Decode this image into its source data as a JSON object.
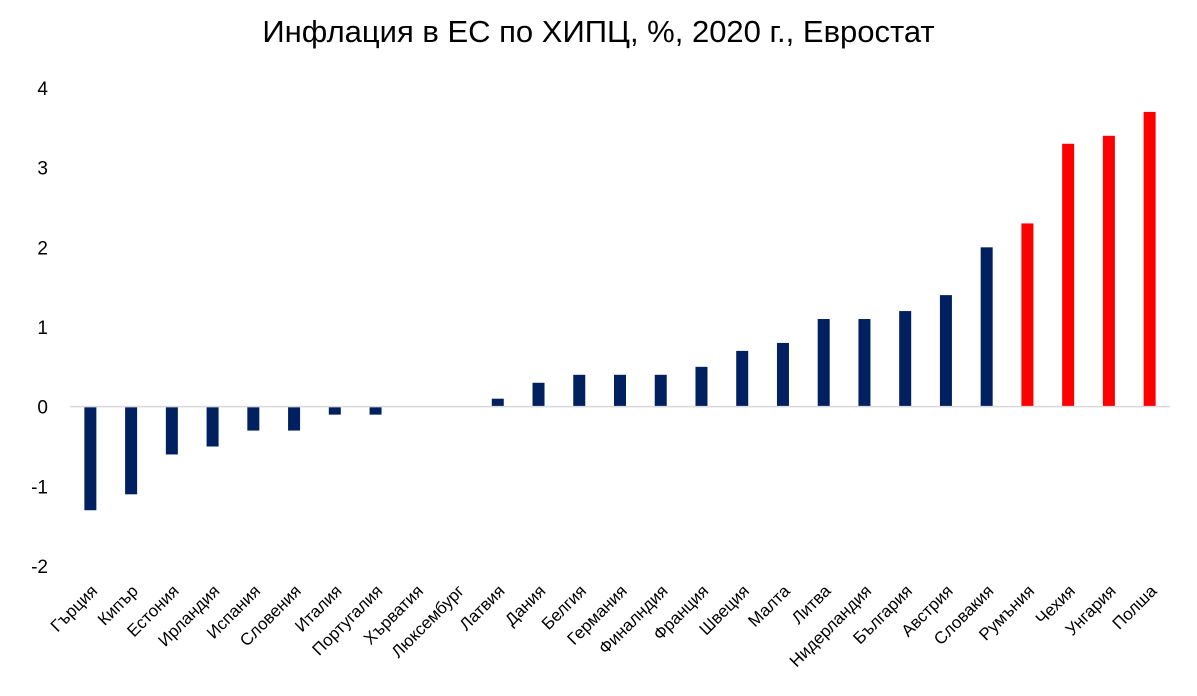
{
  "chart_data": {
    "type": "bar",
    "title": "Инфлация в ЕС по ХИПЦ, %, 2020 г., Евростат",
    "xlabel": "",
    "ylabel": "",
    "ylim": [
      -2,
      4
    ],
    "yticks": [
      "-2",
      "-1",
      "0",
      "1",
      "2",
      "3",
      "4"
    ],
    "grid": false,
    "legend": "none",
    "categories": [
      "Гърция",
      "Кипър",
      "Естония",
      "Ирландия",
      "Испания",
      "Словения",
      "Италия",
      "Португалия",
      "Хърватия",
      "Люксембург",
      "Латвия",
      "Дания",
      "Белгия",
      "Германия",
      "Финалндия",
      "Франция",
      "Швеция",
      "Малта",
      "Литва",
      "Нидерландия",
      "България",
      "Австрия",
      "Словакия",
      "Румъния",
      "Чехия",
      "Унгария",
      "Полша"
    ],
    "values": [
      -1.3,
      -1.1,
      -0.6,
      -0.5,
      -0.3,
      -0.3,
      -0.1,
      -0.1,
      0.0,
      0.0,
      0.1,
      0.3,
      0.4,
      0.4,
      0.4,
      0.5,
      0.7,
      0.8,
      1.1,
      1.1,
      1.2,
      1.4,
      2.0,
      2.3,
      3.3,
      3.4,
      3.7
    ],
    "colors": [
      "#002060",
      "#002060",
      "#002060",
      "#002060",
      "#002060",
      "#002060",
      "#002060",
      "#002060",
      "#002060",
      "#002060",
      "#002060",
      "#002060",
      "#002060",
      "#002060",
      "#002060",
      "#002060",
      "#002060",
      "#002060",
      "#002060",
      "#002060",
      "#002060",
      "#002060",
      "#002060",
      "#ff0000",
      "#ff0000",
      "#ff0000",
      "#ff0000"
    ]
  }
}
